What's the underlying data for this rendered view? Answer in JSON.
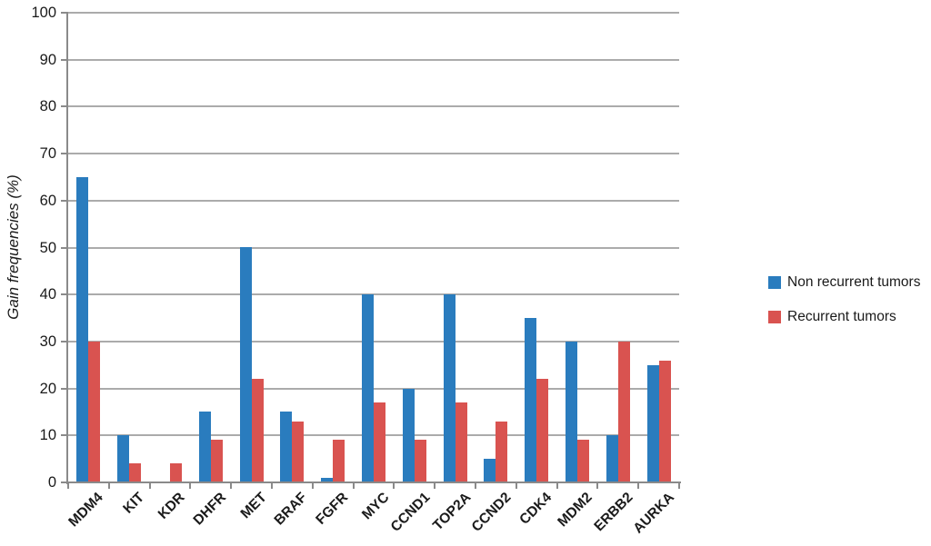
{
  "chart_data": {
    "type": "bar",
    "title": "",
    "xlabel": "",
    "ylabel": "Gain frequencies (%)",
    "ylim": [
      0,
      100
    ],
    "ytick_step": 10,
    "yticks": [
      0,
      10,
      20,
      30,
      40,
      50,
      60,
      70,
      80,
      90,
      100
    ],
    "grid": true,
    "legend_position": "right",
    "categories": [
      "MDM4",
      "KIT",
      "KDR",
      "DHFR",
      "MET",
      "BRAF",
      "FGFR",
      "MYC",
      "CCND1",
      "TOP2A",
      "CCND2",
      "CDK4",
      "MDM2",
      "ERBB2",
      "AURKA"
    ],
    "series": [
      {
        "name": "Non recurrent tumors",
        "color": "#2a7cbe",
        "values": [
          65,
          10,
          0,
          15,
          50,
          15,
          1,
          40,
          20,
          40,
          5,
          35,
          30,
          10,
          25
        ]
      },
      {
        "name": "Recurrent tumors",
        "color": "#d95350",
        "values": [
          30,
          4,
          4,
          9,
          22,
          13,
          9,
          17,
          9,
          17,
          13,
          22,
          9,
          30,
          26
        ]
      }
    ],
    "colors": {
      "gridline": "#ababab",
      "axis": "#8a8a8a",
      "text": "#1a1a1a",
      "background": "#ffffff"
    }
  }
}
